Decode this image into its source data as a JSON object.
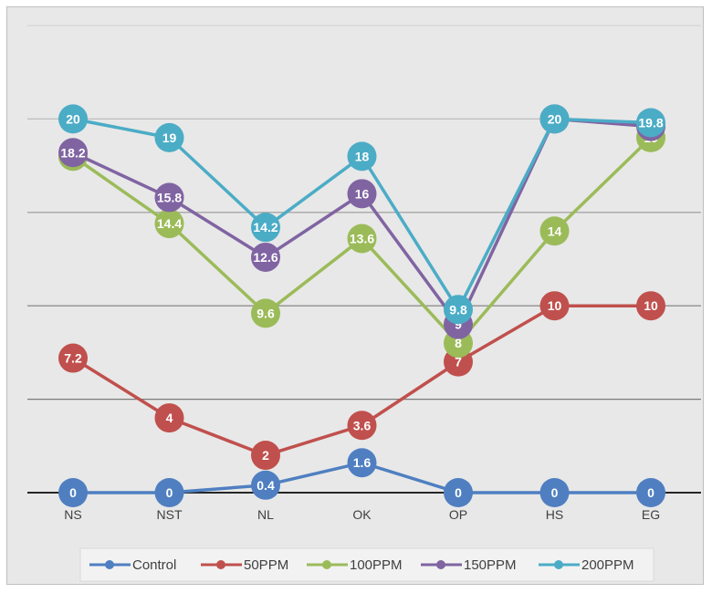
{
  "chart_data": {
    "type": "line",
    "title": "",
    "xlabel": "",
    "ylabel": "",
    "categories": [
      "NS",
      "NST",
      "NL",
      "OK",
      "OP",
      "HS",
      "EG"
    ],
    "ylim": [
      0,
      25
    ],
    "grid": true,
    "legend": "bottom",
    "series": [
      {
        "name": "Control",
        "color": "#4f7fc1",
        "values": [
          0,
          0,
          0.4,
          1.6,
          0,
          0,
          0
        ]
      },
      {
        "name": "50PPM",
        "color": "#c0504d",
        "values": [
          7.2,
          4,
          2,
          3.6,
          7,
          10,
          10
        ]
      },
      {
        "name": "100PPM",
        "color": "#9bbb59",
        "values": [
          18,
          14.4,
          9.6,
          13.6,
          8,
          14,
          19
        ]
      },
      {
        "name": "150PPM",
        "color": "#8064a2",
        "values": [
          18.2,
          15.8,
          12.6,
          16,
          9,
          20,
          19.6
        ]
      },
      {
        "name": "200PPM",
        "color": "#4bacc6",
        "values": [
          20,
          19,
          14.2,
          18,
          9.8,
          20,
          19.8
        ]
      }
    ]
  }
}
